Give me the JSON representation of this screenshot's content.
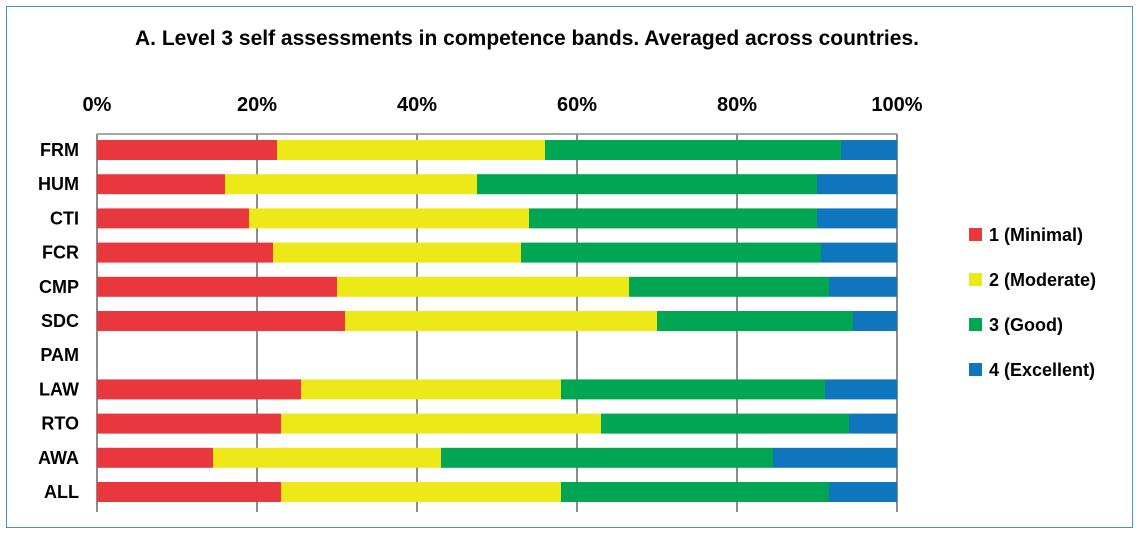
{
  "chart_data": {
    "type": "bar",
    "orientation": "horizontal",
    "stacked": "percent",
    "title": "A. Level 3 self assessments in competence bands. Averaged across countries.",
    "xlim": [
      0,
      100
    ],
    "x_ticks": [
      "0%",
      "20%",
      "40%",
      "60%",
      "80%",
      "100%"
    ],
    "x_axis_position": "top",
    "grid": true,
    "legend_position": "right",
    "categories": [
      "FRM",
      "HUM",
      "CTI",
      "FCR",
      "CMP",
      "SDC",
      "PAM",
      "LAW",
      "RTO",
      "AWA",
      "ALL"
    ],
    "series": [
      {
        "name": "1 (Minimal)",
        "color": "#e8383d",
        "values": [
          22.5,
          16,
          19,
          22,
          30,
          31,
          null,
          25.5,
          23,
          14.5,
          23
        ]
      },
      {
        "name": "2 (Moderate)",
        "color": "#ede818",
        "values": [
          33.5,
          31.5,
          35,
          31,
          36.5,
          39,
          null,
          32.5,
          40,
          28.5,
          35
        ]
      },
      {
        "name": "3 (Good)",
        "color": "#00a651",
        "values": [
          37,
          42.5,
          36,
          37.5,
          25,
          24.5,
          null,
          33,
          31,
          41.5,
          33.5
        ]
      },
      {
        "name": "4 (Excellent)",
        "color": "#0f75bc",
        "values": [
          7,
          10,
          10,
          9.5,
          8.5,
          5.5,
          null,
          9,
          6,
          15.5,
          8.5
        ]
      }
    ]
  }
}
